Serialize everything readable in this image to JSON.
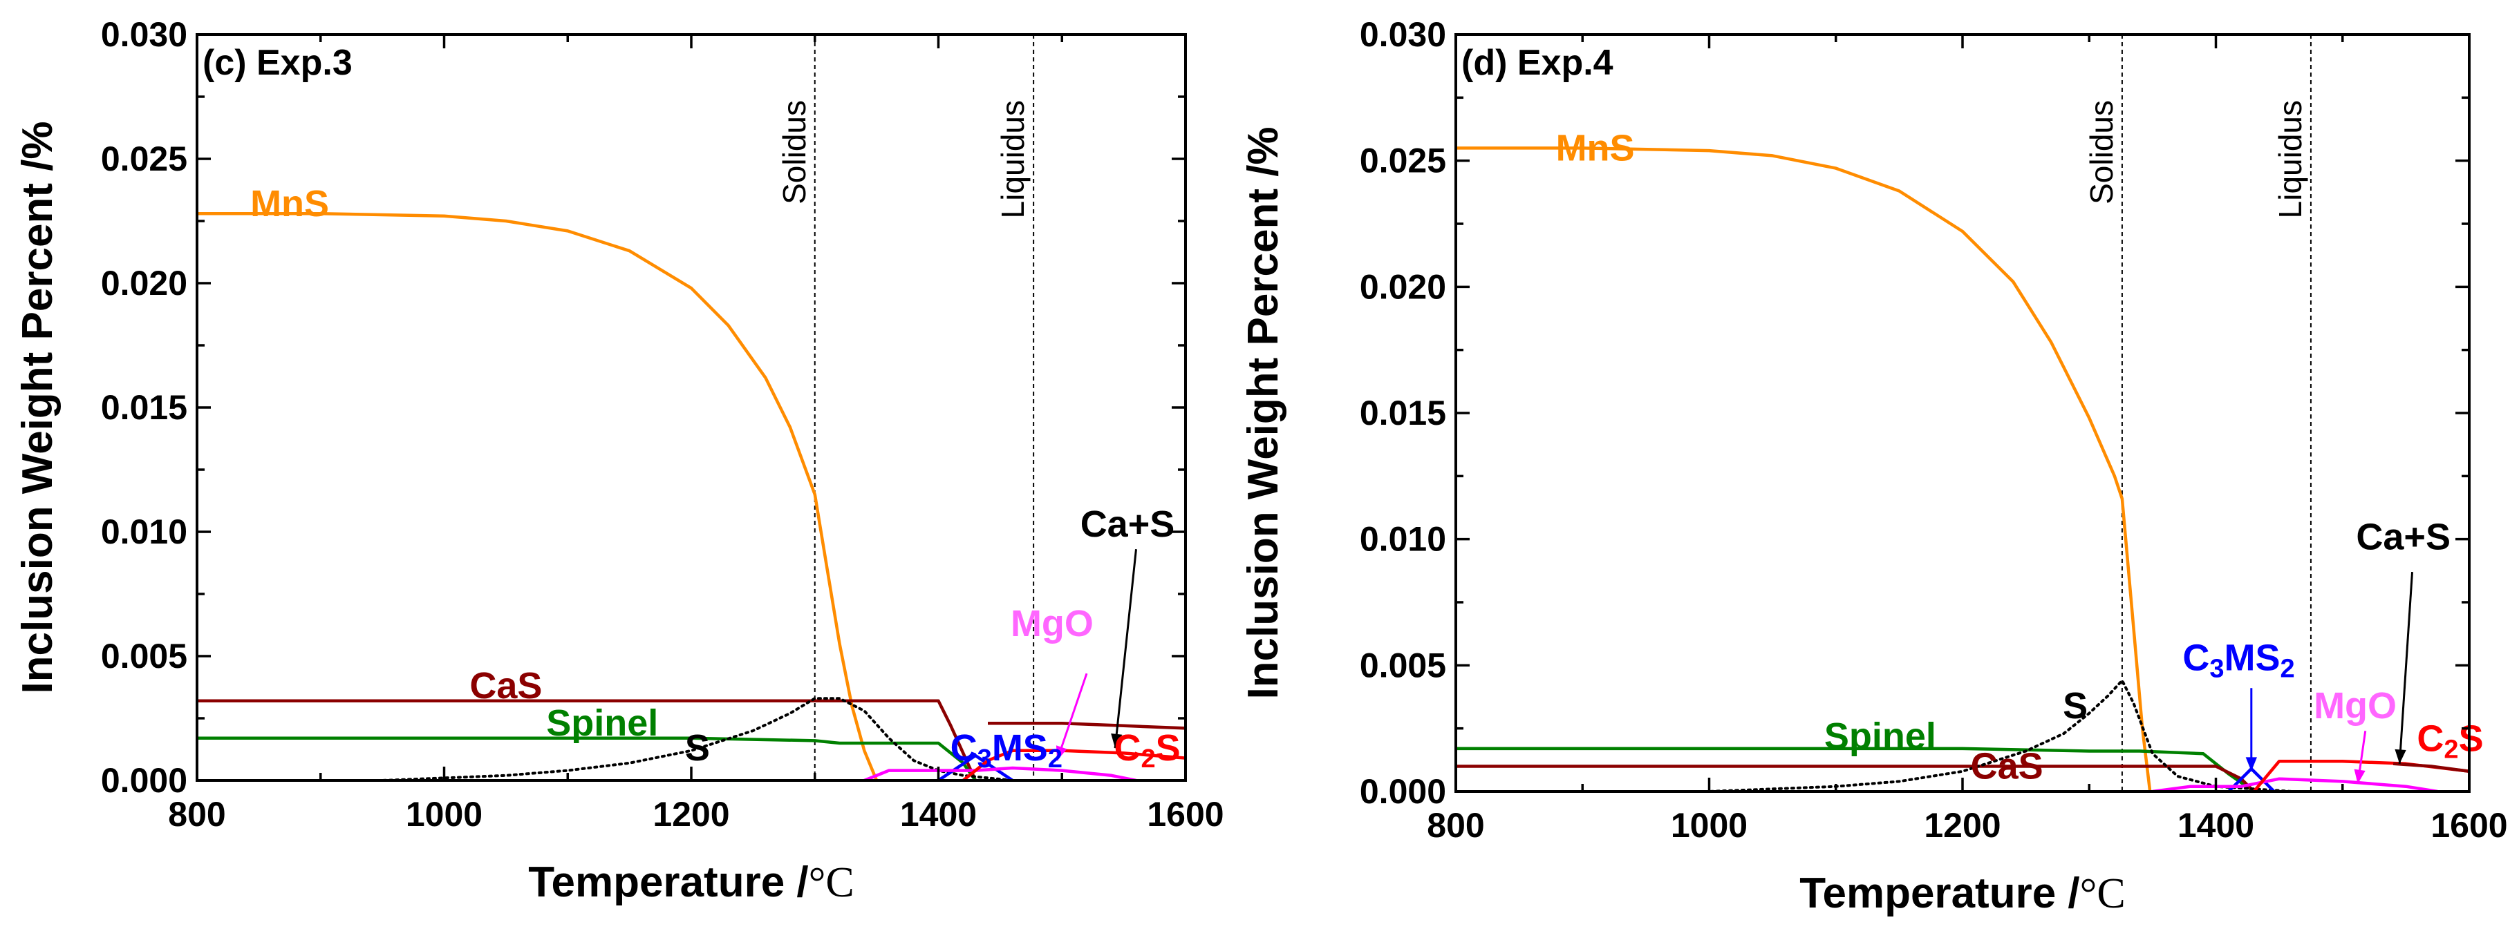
{
  "chart_data": [
    {
      "type": "line",
      "panel_label": "(c) Exp.3",
      "xlabel_text": "Temperature /",
      "xlabel_unit": "°C",
      "ylabel": "Inclusion Weight Percent /%",
      "xlim": [
        800,
        1600
      ],
      "ylim": [
        0,
        0.03
      ],
      "x_ticks": [
        "800",
        "1000",
        "1200",
        "1400",
        "1600"
      ],
      "y_ticks": [
        "0.000",
        "0.005",
        "0.010",
        "0.015",
        "0.020",
        "0.025",
        "0.030"
      ],
      "grid": false,
      "markers": [
        {
          "label": "Solidus",
          "x": 1300
        },
        {
          "label": "Liquidus",
          "x": 1477
        }
      ],
      "series": [
        {
          "name": "MnS",
          "color": "#ff8c00",
          "style": "solid",
          "x": [
            800,
            900,
            1000,
            1050,
            1100,
            1150,
            1200,
            1230,
            1260,
            1280,
            1300,
            1310,
            1320,
            1330,
            1340,
            1350
          ],
          "y": [
            0.0228,
            0.0228,
            0.0227,
            0.0225,
            0.0221,
            0.0213,
            0.0198,
            0.0183,
            0.0162,
            0.0142,
            0.0115,
            0.0085,
            0.0055,
            0.003,
            0.0012,
            0.0
          ]
        },
        {
          "name": "CaS",
          "color": "#8b0000",
          "style": "solid",
          "x": [
            800,
            1000,
            1200,
            1300,
            1400,
            1410,
            1420,
            1430
          ],
          "y": [
            0.0032,
            0.0032,
            0.0032,
            0.0032,
            0.0032,
            0.0022,
            0.0011,
            0.0
          ]
        },
        {
          "name": "Spinel",
          "color": "#008000",
          "style": "solid",
          "x": [
            800,
            1000,
            1200,
            1300,
            1320,
            1400,
            1420,
            1430
          ],
          "y": [
            0.0017,
            0.0017,
            0.0017,
            0.0016,
            0.0015,
            0.0015,
            0.0007,
            0.0
          ]
        },
        {
          "name": "S",
          "color": "#000000",
          "style": "dotted",
          "x": [
            800,
            900,
            950,
            1000,
            1050,
            1100,
            1150,
            1200,
            1250,
            1280,
            1300,
            1320,
            1340,
            1360,
            1380,
            1400,
            1420,
            1440,
            1460,
            1480,
            1500
          ],
          "y": [
            0.0,
            0.0,
            0.0,
            0.0001,
            0.0002,
            0.0004,
            0.0007,
            0.0012,
            0.002,
            0.0027,
            0.0033,
            0.0033,
            0.0028,
            0.0017,
            0.0008,
            0.0004,
            0.0002,
            0.0001,
            0.0,
            0.0,
            0.0
          ]
        },
        {
          "name": "C3MS2",
          "color": "#0000ff",
          "style": "solid",
          "x": [
            1400,
            1415,
            1430,
            1445,
            1460
          ],
          "y": [
            0.0,
            0.0005,
            0.001,
            0.0005,
            0.0
          ]
        },
        {
          "name": "MgO",
          "color": "#ff00ff",
          "style": "solid",
          "x": [
            1340,
            1360,
            1400,
            1430,
            1460,
            1500,
            1540,
            1560
          ],
          "y": [
            0.0,
            0.0004,
            0.0004,
            0.0004,
            0.0005,
            0.0004,
            0.0002,
            0.0
          ]
        },
        {
          "name": "C2S",
          "color": "#ff0000",
          "style": "solid",
          "x": [
            1420,
            1440,
            1460,
            1500,
            1550,
            1600
          ],
          "y": [
            0.0,
            0.0008,
            0.0012,
            0.0012,
            0.0011,
            0.0009
          ]
        },
        {
          "name": "Ca+S",
          "color": "#8b0000",
          "style": "solid",
          "x": [
            1440,
            1460,
            1500,
            1550,
            1600
          ],
          "y": [
            0.0023,
            0.0023,
            0.0023,
            0.0022,
            0.0021
          ]
        }
      ],
      "labels": [
        {
          "series": "MnS",
          "parts": [
            {
              "t": "MnS"
            }
          ],
          "color": "#ff8c00"
        },
        {
          "series": "CaS",
          "parts": [
            {
              "t": "CaS"
            }
          ],
          "color": "#8b0000"
        },
        {
          "series": "Spinel",
          "parts": [
            {
              "t": "Spinel"
            }
          ],
          "color": "#008000"
        },
        {
          "series": "S",
          "parts": [
            {
              "t": "S"
            }
          ],
          "color": "#000000"
        },
        {
          "series": "C3MS2",
          "parts": [
            {
              "t": "C"
            },
            {
              "t": "3",
              "sub": true
            },
            {
              "t": "MS"
            },
            {
              "t": "2",
              "sub": true
            }
          ],
          "color": "#0000ff"
        },
        {
          "series": "MgO",
          "parts": [
            {
              "t": "MgO"
            }
          ],
          "color": "#ff66ff"
        },
        {
          "series": "Ca+S",
          "parts": [
            {
              "t": "Ca+S"
            }
          ],
          "color": "#000000"
        },
        {
          "series": "C2S",
          "parts": [
            {
              "t": "C"
            },
            {
              "t": "2",
              "sub": true
            },
            {
              "t": "S"
            }
          ],
          "color": "#ff0000"
        }
      ]
    },
    {
      "type": "line",
      "panel_label": "(d) Exp.4",
      "xlabel_text": "Temperature /",
      "xlabel_unit": "°C",
      "ylabel": "Inclusion Weight Percent /%",
      "xlim": [
        800,
        1600
      ],
      "ylim": [
        0,
        0.03
      ],
      "x_ticks": [
        "800",
        "1000",
        "1200",
        "1400",
        "1600"
      ],
      "y_ticks": [
        "0.000",
        "0.005",
        "0.010",
        "0.015",
        "0.020",
        "0.025",
        "0.030"
      ],
      "grid": false,
      "markers": [
        {
          "label": "Solidus",
          "x": 1326
        },
        {
          "label": "Liquidus",
          "x": 1475
        }
      ],
      "series": [
        {
          "name": "MnS",
          "color": "#ff8c00",
          "style": "solid",
          "x": [
            800,
            900,
            1000,
            1050,
            1100,
            1150,
            1200,
            1240,
            1270,
            1300,
            1320,
            1326,
            1335,
            1342,
            1348
          ],
          "y": [
            0.0255,
            0.0255,
            0.0254,
            0.0252,
            0.0247,
            0.0238,
            0.0222,
            0.0202,
            0.0178,
            0.0148,
            0.0125,
            0.0116,
            0.0065,
            0.0025,
            0.0
          ]
        },
        {
          "name": "Spinel",
          "color": "#008000",
          "style": "solid",
          "x": [
            800,
            1000,
            1200,
            1300,
            1340,
            1390,
            1410,
            1430
          ],
          "y": [
            0.0017,
            0.0017,
            0.0017,
            0.0016,
            0.0016,
            0.0015,
            0.0007,
            0.0
          ]
        },
        {
          "name": "CaS",
          "color": "#8b0000",
          "style": "solid",
          "x": [
            800,
            1000,
            1200,
            1326,
            1400,
            1420,
            1430
          ],
          "y": [
            0.001,
            0.001,
            0.001,
            0.001,
            0.001,
            0.0005,
            0.0
          ]
        },
        {
          "name": "S",
          "color": "#000000",
          "style": "dotted",
          "x": [
            800,
            900,
            1000,
            1050,
            1100,
            1150,
            1200,
            1250,
            1280,
            1300,
            1315,
            1326,
            1335,
            1350,
            1370,
            1400,
            1430,
            1460
          ],
          "y": [
            0.0,
            0.0,
            0.0,
            0.0001,
            0.0002,
            0.0004,
            0.0008,
            0.0016,
            0.0023,
            0.0031,
            0.0038,
            0.0044,
            0.0035,
            0.0015,
            0.0006,
            0.0002,
            0.0001,
            0.0
          ]
        },
        {
          "name": "C3MS2",
          "color": "#0000ff",
          "style": "solid",
          "x": [
            1410,
            1420,
            1428,
            1436,
            1446
          ],
          "y": [
            0.0,
            0.0005,
            0.0009,
            0.0005,
            0.0
          ]
        },
        {
          "name": "MgO",
          "color": "#ff00ff",
          "style": "solid",
          "x": [
            1350,
            1380,
            1420,
            1450,
            1500,
            1550,
            1575
          ],
          "y": [
            0.0,
            0.0002,
            0.0002,
            0.0005,
            0.0004,
            0.0002,
            0.0
          ]
        },
        {
          "name": "C2S",
          "color": "#ff0000",
          "style": "solid",
          "x": [
            1430,
            1450,
            1500,
            1550,
            1600
          ],
          "y": [
            0.0,
            0.0012,
            0.0012,
            0.0011,
            0.0008
          ]
        },
        {
          "name": "Ca+S",
          "color": "#8b0000",
          "style": "solid",
          "x": [
            1540,
            1570,
            1600
          ],
          "y": [
            0.0011,
            0.001,
            0.0008
          ]
        }
      ],
      "labels": [
        {
          "series": "MnS",
          "parts": [
            {
              "t": "MnS"
            }
          ],
          "color": "#ff8c00"
        },
        {
          "series": "Spinel",
          "parts": [
            {
              "t": "Spinel"
            }
          ],
          "color": "#008000"
        },
        {
          "series": "CaS",
          "parts": [
            {
              "t": "CaS"
            }
          ],
          "color": "#8b0000"
        },
        {
          "series": "S",
          "parts": [
            {
              "t": "S"
            }
          ],
          "color": "#000000"
        },
        {
          "series": "C3MS2",
          "parts": [
            {
              "t": "C"
            },
            {
              "t": "3",
              "sub": true
            },
            {
              "t": "MS"
            },
            {
              "t": "2",
              "sub": true
            }
          ],
          "color": "#0000ff"
        },
        {
          "series": "MgO",
          "parts": [
            {
              "t": "MgO"
            }
          ],
          "color": "#ff66ff"
        },
        {
          "series": "Ca+S",
          "parts": [
            {
              "t": "Ca+S"
            }
          ],
          "color": "#000000"
        },
        {
          "series": "C2S",
          "parts": [
            {
              "t": "C"
            },
            {
              "t": "2",
              "sub": true
            },
            {
              "t": "S"
            }
          ],
          "color": "#ff0000"
        }
      ]
    }
  ]
}
